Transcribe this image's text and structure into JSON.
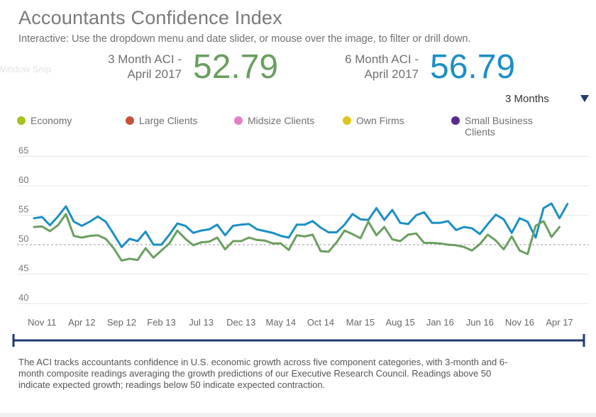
{
  "header": {
    "title": "Accountants Confidence Index",
    "subtitle": "Interactive: Use the dropdown menu and date slider, or mouse over the image, to filter or drill down.",
    "ghost_text": "Window Snip"
  },
  "kpis": [
    {
      "label_line1": "3 Month ACI -",
      "label_line2": "April 2017",
      "value": "52.79",
      "color": "#6a9f5f"
    },
    {
      "label_line1": "6 Month ACI -",
      "label_line2": "April 2017",
      "value": "56.79",
      "color": "#1b8fc4"
    }
  ],
  "dropdown": {
    "selected": "3 Months"
  },
  "legend": [
    {
      "label": "Economy",
      "color": "#a8c21c"
    },
    {
      "label": "Large Clients",
      "color": "#c9513a"
    },
    {
      "label": "Midsize Clients",
      "color": "#e27fc7"
    },
    {
      "label": "Own Firms",
      "color": "#e0c41c"
    },
    {
      "label": "Small Business Clients",
      "color": "#5b2a8e"
    }
  ],
  "footnote": "The ACI tracks accountants confidence in U.S. economic growth across five component categories, with 3-month and 6-month composite readings averaging the growth predictions of our Executive Research Council. Readings above 50 indicate expected growth; readings below 50 indicate expected contraction.",
  "chart_data": {
    "type": "line",
    "ylim": [
      38.5,
      66.5
    ],
    "yticks": [
      40,
      45,
      50,
      55,
      60,
      65
    ],
    "reference_line": 50,
    "x_tick_labels": [
      "Nov 11",
      "Apr 12",
      "Sep 12",
      "Feb 13",
      "Jul 13",
      "Dec 13",
      "May 14",
      "Oct 14",
      "Mar 15",
      "Aug 15",
      "Jan 16",
      "Jun 16",
      "Nov 16",
      "Apr 17"
    ],
    "x_tick_index": [
      1,
      6,
      11,
      16,
      21,
      26,
      31,
      36,
      41,
      46,
      51,
      56,
      61,
      66
    ],
    "series": [
      {
        "color": "#1b8fc4",
        "values": [
          54.5,
          54.7,
          53.3,
          54.8,
          56.5,
          53.9,
          53.2,
          53.9,
          54.8,
          53.9,
          51.8,
          49.6,
          51.0,
          50.6,
          52.2,
          50.0,
          50.0,
          51.7,
          53.6,
          53.2,
          52.0,
          52.4,
          52.6,
          53.4,
          51.6,
          53.2,
          53.4,
          53.5,
          52.6,
          52.3,
          52.0,
          51.5,
          51.2,
          53.4,
          53.4,
          54.0,
          52.9,
          52.1,
          52.1,
          53.4,
          55.2,
          54.3,
          54.2,
          56.2,
          54.2,
          55.9,
          53.7,
          53.5,
          55.0,
          55.5,
          53.7,
          53.7,
          54.0,
          52.5,
          53.0,
          52.8,
          51.8,
          53.5,
          55.1,
          54.3,
          52.0,
          54.5,
          53.9,
          51.2,
          56.2,
          57.0,
          54.5,
          56.9
        ]
      },
      {
        "color": "#6a9f5f",
        "values": [
          53.0,
          53.1,
          52.3,
          53.3,
          55.2,
          51.5,
          51.2,
          51.5,
          51.6,
          51.0,
          49.4,
          47.3,
          47.6,
          47.4,
          49.4,
          47.8,
          49.0,
          50.2,
          52.4,
          51.0,
          49.9,
          50.4,
          50.5,
          51.2,
          49.2,
          50.6,
          50.6,
          51.2,
          50.8,
          50.7,
          50.2,
          50.2,
          49.1,
          51.6,
          51.4,
          51.7,
          48.9,
          48.8,
          50.4,
          52.4,
          51.8,
          51.1,
          53.9,
          51.6,
          53.0,
          50.9,
          50.6,
          51.7,
          51.9,
          50.3,
          50.3,
          50.2,
          50.0,
          49.9,
          49.6,
          49.0,
          50.1,
          51.7,
          50.7,
          49.2,
          51.4,
          49.0,
          48.4,
          53.2,
          54.0,
          51.3,
          53.0
        ]
      }
    ]
  }
}
